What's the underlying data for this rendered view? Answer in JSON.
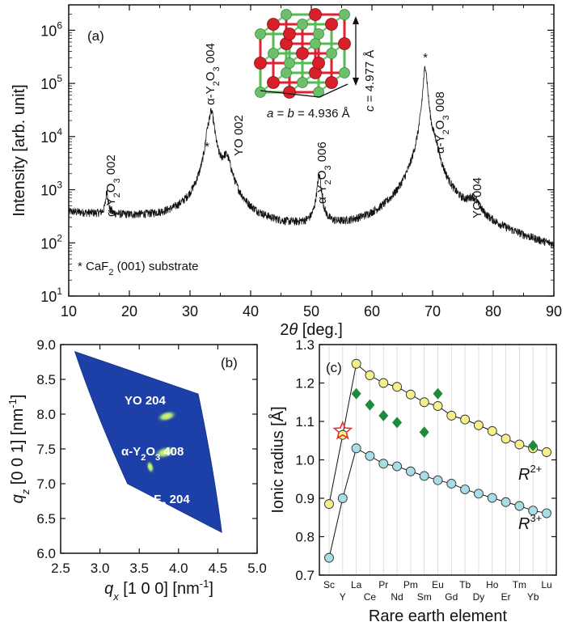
{
  "chart_data": [
    {
      "id": "a",
      "type": "line",
      "panel_label": "(a)",
      "xlabel": "2θ [deg.]",
      "ylabel": "Intensity  [arb. unit]",
      "xlim": [
        10,
        90
      ],
      "ylim": [
        10,
        3000000
      ],
      "y_scale": "log",
      "x_ticks": [
        10,
        20,
        30,
        40,
        50,
        60,
        70,
        80,
        90
      ],
      "y_ticks": [
        {
          "value": 10,
          "label": "10",
          "exp": "1"
        },
        {
          "value": 100,
          "label": "10",
          "exp": "2"
        },
        {
          "value": 1000,
          "label": "10",
          "exp": "3"
        },
        {
          "value": 10000,
          "label": "10",
          "exp": "4"
        },
        {
          "value": 100000,
          "label": "10",
          "exp": "5"
        },
        {
          "value": 1000000,
          "label": "10",
          "exp": "6"
        }
      ],
      "background": [
        [
          10,
          370
        ],
        [
          20,
          290
        ],
        [
          30,
          230
        ],
        [
          32,
          260
        ],
        [
          40,
          180
        ],
        [
          45,
          150
        ],
        [
          50,
          140
        ],
        [
          55,
          125
        ],
        [
          60,
          115
        ],
        [
          65,
          110
        ],
        [
          70,
          105
        ],
        [
          75,
          95
        ],
        [
          80,
          80
        ],
        [
          85,
          60
        ],
        [
          90,
          45
        ]
      ],
      "peaks": [
        {
          "x": 16.3,
          "height": 600,
          "width": 0.2,
          "label": "α-Y2O3 002"
        },
        {
          "x": 32.8,
          "height": 4500,
          "width": 0.15,
          "label": "*"
        },
        {
          "x": 33.5,
          "height": 29000,
          "width": 0.5,
          "label": "α-Y2O3 004"
        },
        {
          "x": 36.0,
          "height": 3300,
          "width": 0.8,
          "label": "YO 002"
        },
        {
          "x": 51.3,
          "height": 1600,
          "width": 0.35,
          "label": "α-Y2O3 006"
        },
        {
          "x": 68.8,
          "height": 210000,
          "width": 0.3,
          "label": "*"
        },
        {
          "x": 70.4,
          "height": 3300,
          "width": 0.55,
          "label": "α-Y2O3 008"
        },
        {
          "x": 76.7,
          "height": 320,
          "width": 1.0,
          "label": "YO 004"
        }
      ],
      "peak_labels": {
        "a1": {
          "pre": "α-Y",
          "sub1": "2",
          "mid": "O",
          "sub2": "3",
          "post": " 002"
        },
        "a2": {
          "pre": "α-Y",
          "sub1": "2",
          "mid": "O",
          "sub2": "3",
          "post": " 004"
        },
        "a3": "YO 002",
        "a4": {
          "pre": "α-Y",
          "sub1": "2",
          "mid": "O",
          "sub2": "3",
          "post": " 006"
        },
        "a5": {
          "pre": "α-Y",
          "sub1": "2",
          "mid": "O",
          "sub2": "3",
          "post": " 008"
        },
        "a6": "YO 004",
        "star": "*"
      },
      "substrate_note": {
        "pre": "* CaF",
        "sub": "2",
        "post": " (001) substrate"
      },
      "inset": {
        "c_label": {
          "var": "c",
          "text": " = 4.977 Å"
        },
        "ab_label": {
          "var1": "a",
          "mid": " = ",
          "var2": "b",
          "text": " = 4.936 Å"
        }
      }
    },
    {
      "id": "b",
      "type": "heatmap",
      "panel_label": "(b)",
      "xlabel": {
        "var": "q",
        "sub": "x",
        "text": " [1 0 0] [nm",
        "exp": "-1",
        "end": "]"
      },
      "ylabel": {
        "var": "q",
        "sub": "z",
        "text": " [0 0 1] [nm",
        "exp": "-1",
        "end": "]"
      },
      "xlim": [
        2.5,
        5.0
      ],
      "ylim": [
        6.0,
        9.0
      ],
      "x_ticks": [
        "2.5",
        "3.0",
        "3.5",
        "4.0",
        "4.5",
        "5.0"
      ],
      "y_ticks": [
        "6.0",
        "6.5",
        "7.0",
        "7.5",
        "8.0",
        "8.5",
        "9.0"
      ],
      "spots": [
        {
          "qx": 3.85,
          "qz": 7.97,
          "label": "YO 204"
        },
        {
          "qx": 3.83,
          "qz": 7.45,
          "label": "α-Y2O3 408"
        },
        {
          "qx": 3.64,
          "qz": 7.24,
          "label": "CaF2 204"
        }
      ],
      "spot_labels": {
        "s1": "YO 204",
        "s2": {
          "pre": "α-Y",
          "sub1": "2",
          "mid": "O",
          "sub2": "3",
          "post": " 408"
        },
        "s3": {
          "pre": "CaF",
          "sub": "2",
          "post": " 204"
        }
      },
      "colors": {
        "background": "#1d3fa8",
        "spot": "#f0e040"
      }
    },
    {
      "id": "c",
      "type": "scatter",
      "panel_label": "(c)",
      "xlabel": "Rare earth element",
      "ylabel": "Ionic radius [Å]",
      "ylim": [
        0.7,
        1.3
      ],
      "y_ticks": [
        "0.7",
        "0.8",
        "0.9",
        "1.0",
        "1.1",
        "1.2",
        "1.3"
      ],
      "categories": [
        "Sc",
        "Y",
        "La",
        "Ce",
        "Pr",
        "Nd",
        "Pm",
        "Sm",
        "Eu",
        "Gd",
        "Tb",
        "Dy",
        "Ho",
        "Er",
        "Tm",
        "Yb",
        "Lu"
      ],
      "series": [
        {
          "name": "R2+",
          "color": "#f5f08a",
          "values": [
            0.885,
            1.065,
            1.25,
            1.22,
            1.2,
            1.19,
            1.17,
            1.15,
            1.14,
            1.115,
            1.105,
            1.09,
            1.075,
            1.055,
            1.04,
            1.03,
            1.02
          ]
        },
        {
          "name": "R3+",
          "color": "#a8dde6",
          "values": [
            0.745,
            0.9,
            1.03,
            1.01,
            0.99,
            0.983,
            0.97,
            0.958,
            0.947,
            0.938,
            0.923,
            0.912,
            0.901,
            0.89,
            0.88,
            0.868,
            0.861
          ]
        },
        {
          "name": "diamonds",
          "color": "#1e8a3c",
          "values": [
            {
              "x": "La",
              "y": 1.172
            },
            {
              "x": "Ce",
              "y": 1.143
            },
            {
              "x": "Pr",
              "y": 1.115
            },
            {
              "x": "Nd",
              "y": 1.097
            },
            {
              "x": "Sm",
              "y": 1.072
            },
            {
              "x": "Eu",
              "y": 1.172
            },
            {
              "x": "Yb",
              "y": 1.037
            }
          ]
        },
        {
          "name": "star",
          "color": "#e83030",
          "values": [
            {
              "x": "Y",
              "y": 1.075
            }
          ]
        }
      ],
      "series_labels": {
        "r2": {
          "var": "R",
          "sup": "2+"
        },
        "r3": {
          "var": "R",
          "sup": "3+"
        }
      }
    }
  ]
}
